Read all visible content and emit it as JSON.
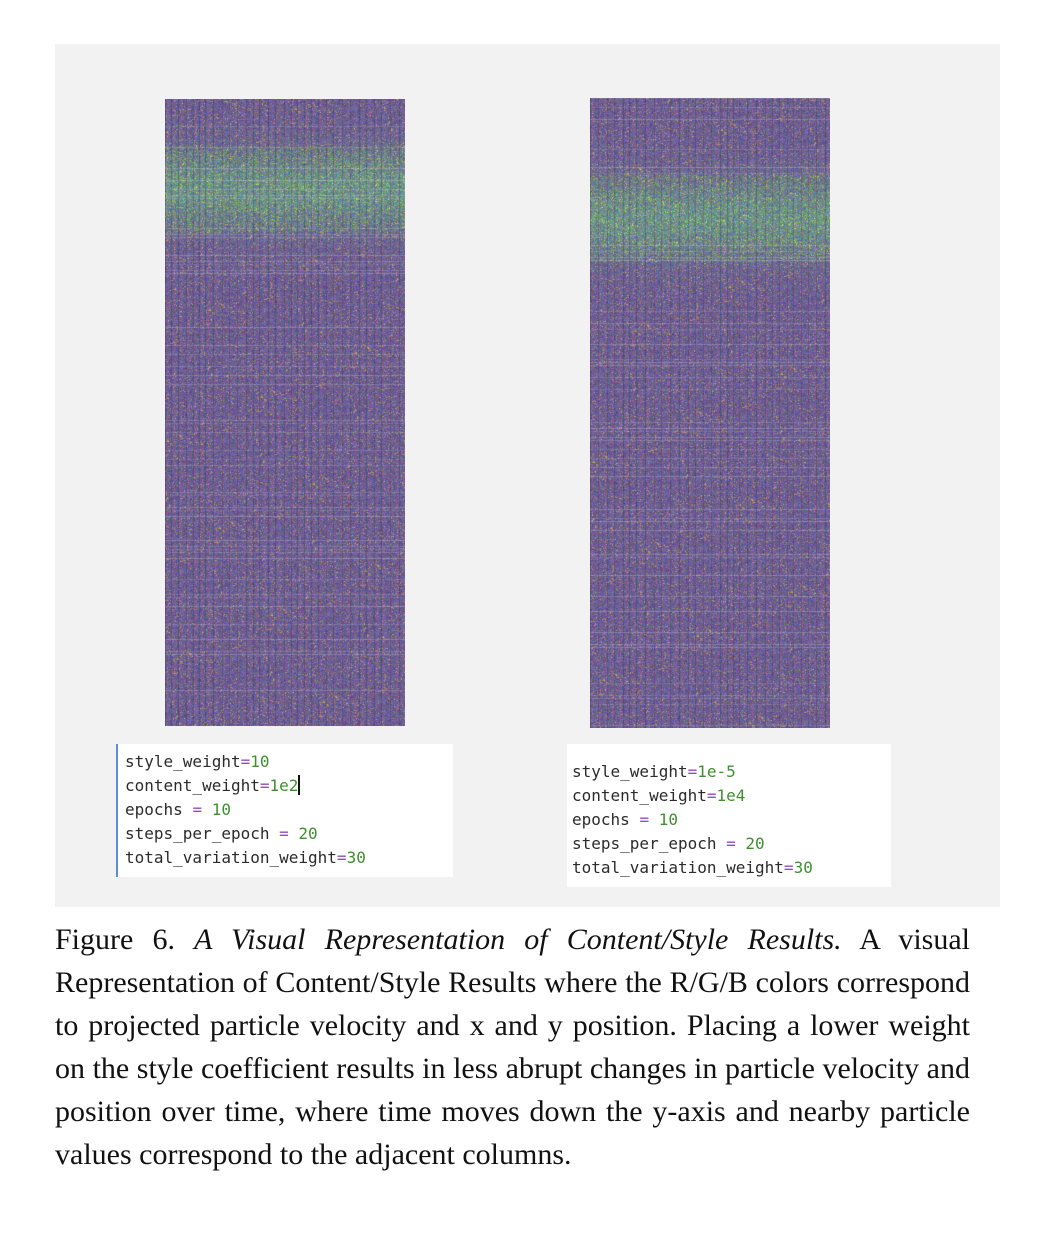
{
  "figure": {
    "left_params": [
      {
        "name": "style_weight",
        "op": "=",
        "value": "10"
      },
      {
        "name": "content_weight",
        "op": "=",
        "value": "1e2"
      },
      {
        "name": "epochs ",
        "op": "=",
        "value": " 10"
      },
      {
        "name": "steps_per_epoch ",
        "op": "=",
        "value": " 20"
      },
      {
        "name": "total_variation_weight",
        "op": "=",
        "value": "30"
      }
    ],
    "right_params": [
      {
        "name": "style_weight",
        "op": "=",
        "value": "1e-5"
      },
      {
        "name": "content_weight",
        "op": "=",
        "value": "1e4"
      },
      {
        "name": "epochs ",
        "op": "=",
        "value": " 10"
      },
      {
        "name": "steps_per_epoch ",
        "op": "=",
        "value": " 20"
      },
      {
        "name": "total_variation_weight",
        "op": "=",
        "value": "30"
      }
    ],
    "code_colors": {
      "value": "#3f8f2f",
      "operator": "#8f4fbf",
      "text": "#2b2b2b"
    },
    "viz_palette": [
      "#4a4a7a",
      "#5b5a8c",
      "#6e6a5c",
      "#7a6a9a",
      "#8a7a4f",
      "#3c4a78",
      "#9a8a6a",
      "#5c7a6a"
    ]
  },
  "caption": {
    "label": "Figure 6.",
    "title": "A Visual Representation of Content/Style Results.",
    "body": "A visual Representation of Content/Style Results where the R/G/B colors correspond to projected particle velocity and x and y position. Placing a lower weight on the style coefficient results in less abrupt changes in particle velocity and position over time, where time moves down the y-axis and nearby particle values correspond to the adjacent columns."
  }
}
